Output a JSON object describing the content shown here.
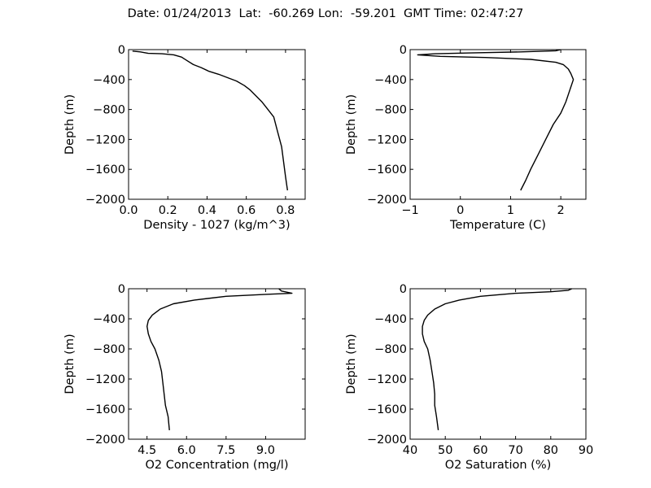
{
  "figure": {
    "title": "Date: 01/24/2013  Lat:  -60.269 Lon:  -59.201  GMT Time: 02:47:27"
  },
  "chart_data": [
    {
      "type": "line",
      "xlabel": "Density - 1027 (kg/m^3)",
      "ylabel": "Depth (m)",
      "xlim": [
        0.0,
        0.9
      ],
      "ylim": [
        -2000,
        0
      ],
      "xticks": [
        0.0,
        0.2,
        0.4,
        0.6,
        0.8
      ],
      "xtick_labels": [
        "0.0",
        "0.2",
        "0.4",
        "0.6",
        "0.8"
      ],
      "yticks": [
        0,
        -400,
        -800,
        -1200,
        -1600,
        -2000
      ],
      "ytick_labels": [
        "0",
        "−400",
        "−800",
        "−1200",
        "−1600",
        "−2000"
      ],
      "grid": false,
      "series": [
        {
          "color": "#000000",
          "x": [
            0.02,
            0.06,
            0.1,
            0.17,
            0.23,
            0.27,
            0.3,
            0.33,
            0.37,
            0.41,
            0.46,
            0.51,
            0.55,
            0.59,
            0.62,
            0.65,
            0.68,
            0.71,
            0.74,
            0.76,
            0.78,
            0.79,
            0.8,
            0.81
          ],
          "y": [
            -20,
            -30,
            -50,
            -55,
            -70,
            -100,
            -150,
            -200,
            -240,
            -290,
            -330,
            -380,
            -420,
            -480,
            -540,
            -620,
            -700,
            -800,
            -900,
            -1100,
            -1300,
            -1500,
            -1700,
            -1880
          ]
        }
      ]
    },
    {
      "type": "line",
      "xlabel": "Temperature (C)",
      "ylabel": "Depth (m)",
      "xlim": [
        -1,
        2.5
      ],
      "ylim": [
        -2000,
        0
      ],
      "xticks": [
        -1,
        0,
        1,
        2
      ],
      "xtick_labels": [
        "−1",
        "0",
        "1",
        "2"
      ],
      "yticks": [
        0,
        -400,
        -800,
        -1200,
        -1600,
        -2000
      ],
      "ytick_labels": [
        "0",
        "−400",
        "−800",
        "−1200",
        "−1600",
        "−2000"
      ],
      "grid": false,
      "series": [
        {
          "color": "#000000",
          "x": [
            2.0,
            1.9,
            1.2,
            0.2,
            -0.5,
            -0.85,
            -0.4,
            0.5,
            1.4,
            1.9,
            2.05,
            2.15,
            2.2,
            2.25,
            2.2,
            2.15,
            2.1,
            2.0,
            1.85,
            1.7,
            1.55,
            1.4,
            1.3,
            1.2
          ],
          "y": [
            0,
            -15,
            -30,
            -45,
            -55,
            -70,
            -90,
            -105,
            -130,
            -170,
            -200,
            -260,
            -320,
            -400,
            -500,
            -600,
            -700,
            -850,
            -1000,
            -1200,
            -1400,
            -1600,
            -1750,
            -1880
          ]
        }
      ]
    },
    {
      "type": "line",
      "xlabel": "O2 Concentration (mg/l)",
      "ylabel": "Depth (m)",
      "xlim": [
        3.8,
        10.5
      ],
      "ylim": [
        -2000,
        0
      ],
      "xticks": [
        4.5,
        6.0,
        7.5,
        9.0
      ],
      "xtick_labels": [
        "4.5",
        "6.0",
        "7.5",
        "9.0"
      ],
      "yticks": [
        0,
        -400,
        -800,
        -1200,
        -1600,
        -2000
      ],
      "ytick_labels": [
        "0",
        "−400",
        "−800",
        "−1200",
        "−1600",
        "−2000"
      ],
      "grid": false,
      "series": [
        {
          "color": "#000000",
          "x": [
            9.5,
            9.6,
            10.0,
            9.0,
            7.5,
            6.3,
            5.5,
            5.0,
            4.7,
            4.55,
            4.5,
            4.55,
            4.65,
            4.8,
            4.95,
            5.05,
            5.1,
            5.15,
            5.2,
            5.3,
            5.35
          ],
          "y": [
            0,
            -30,
            -60,
            -75,
            -100,
            -150,
            -200,
            -270,
            -350,
            -420,
            -500,
            -600,
            -700,
            -800,
            -950,
            -1100,
            -1250,
            -1400,
            -1550,
            -1700,
            -1880
          ]
        }
      ]
    },
    {
      "type": "line",
      "xlabel": "O2 Saturation (%)",
      "ylabel": "Depth (m)",
      "xlim": [
        40,
        90
      ],
      "ylim": [
        -2000,
        0
      ],
      "xticks": [
        40,
        50,
        60,
        70,
        80,
        90
      ],
      "xtick_labels": [
        "40",
        "50",
        "60",
        "70",
        "80",
        "90"
      ],
      "yticks": [
        0,
        -400,
        -800,
        -1200,
        -1600,
        -2000
      ],
      "ytick_labels": [
        "0",
        "−400",
        "−800",
        "−1200",
        "−1600",
        "−2000"
      ],
      "grid": false,
      "series": [
        {
          "color": "#000000",
          "x": [
            86,
            85,
            80,
            70,
            60,
            54,
            50,
            47,
            45,
            44,
            43.5,
            43.5,
            44,
            45,
            45.7,
            46.2,
            46.7,
            47,
            47,
            47.5,
            48
          ],
          "y": [
            0,
            -20,
            -40,
            -60,
            -100,
            -150,
            -200,
            -270,
            -350,
            -420,
            -500,
            -600,
            -700,
            -800,
            -950,
            -1100,
            -1250,
            -1400,
            -1550,
            -1700,
            -1880
          ]
        }
      ]
    }
  ]
}
